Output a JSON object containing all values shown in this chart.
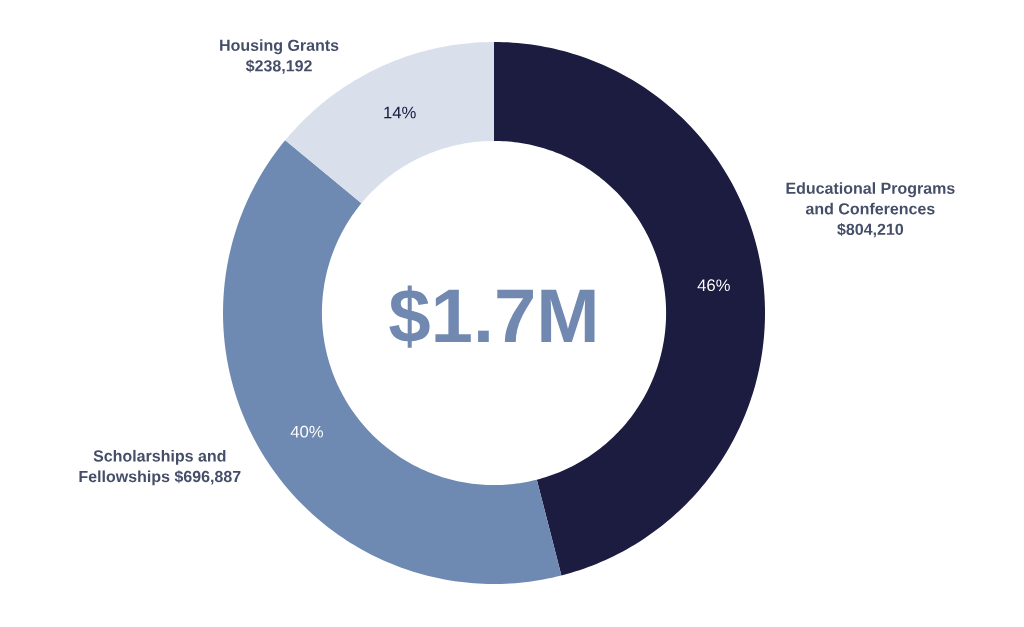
{
  "chart_data": {
    "type": "donut",
    "categories": [
      "Educational Programs and Conferences $804,210",
      "Scholarships and Fellowships $696,887",
      "Housing Grants $238,192"
    ],
    "values": [
      46,
      40,
      14
    ],
    "value_labels": [
      "46%",
      "40%",
      "14%"
    ],
    "colors": [
      "#1b1c40",
      "#6f8ab2",
      "#d9e0ec"
    ],
    "annotations": [
      "$1.7M"
    ]
  }
}
